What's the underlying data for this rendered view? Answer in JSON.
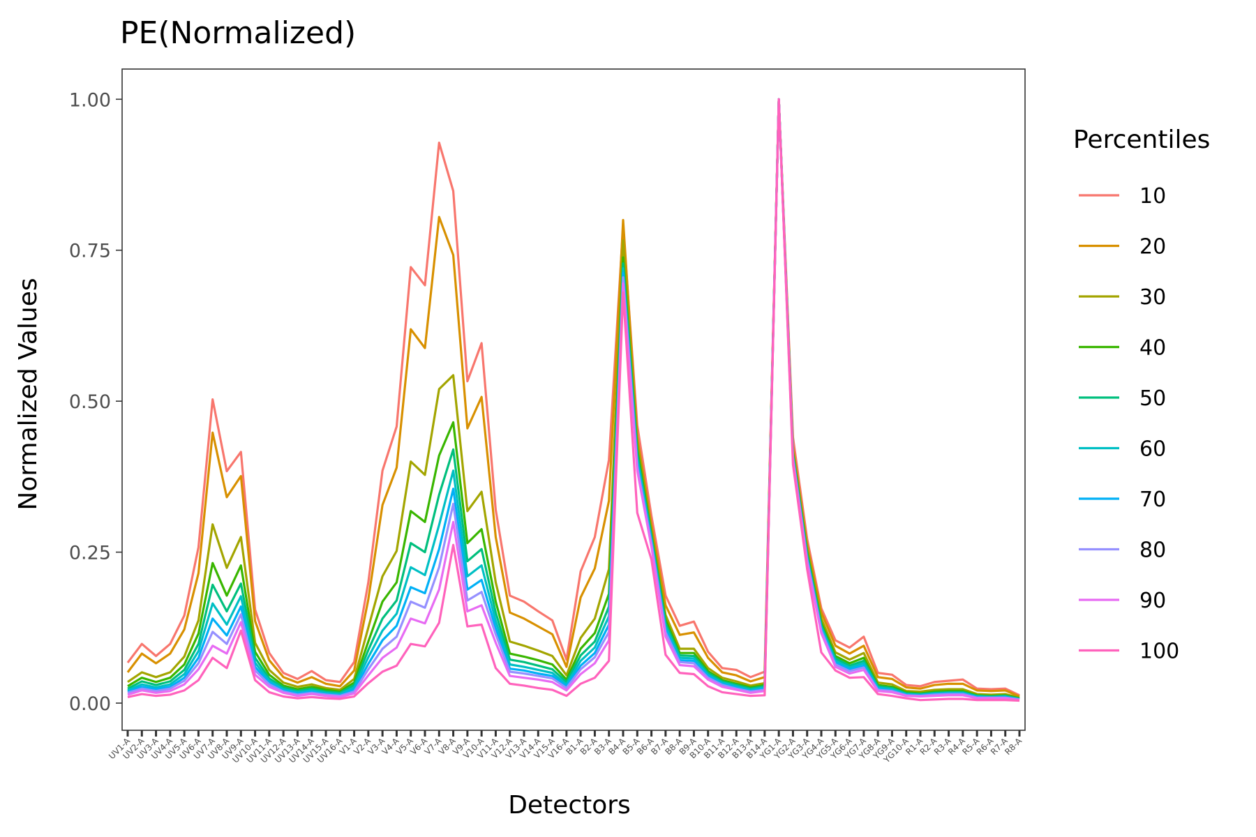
{
  "chart_data": {
    "type": "line",
    "title": "PE(Normalized)",
    "xlabel": "Detectors",
    "ylabel": "Normalized Values",
    "ylim": [
      -0.045,
      1.05
    ],
    "yticks": [
      0.0,
      0.25,
      0.5,
      0.75,
      1.0
    ],
    "ytick_labels": [
      "0.00",
      "0.25",
      "0.50",
      "0.75",
      "1.00"
    ],
    "grid": false,
    "legend": {
      "title": "Percentiles",
      "position": "right"
    },
    "categories": [
      "UV1-A",
      "UV2-A",
      "UV3-A",
      "UV4-A",
      "UV5-A",
      "UV6-A",
      "UV7-A",
      "UV8-A",
      "UV9-A",
      "UV10-A",
      "UV11-A",
      "UV12-A",
      "UV13-A",
      "UV14-A",
      "UV15-A",
      "UV16-A",
      "V1-A",
      "V2-A",
      "V3-A",
      "V4-A",
      "V5-A",
      "V6-A",
      "V7-A",
      "V8-A",
      "V9-A",
      "V10-A",
      "V11-A",
      "V12-A",
      "V13-A",
      "V14-A",
      "V15-A",
      "V16-A",
      "B1-A",
      "B2-A",
      "B3-A",
      "B4-A",
      "B5-A",
      "B6-A",
      "B7-A",
      "B8-A",
      "B9-A",
      "B10-A",
      "B11-A",
      "B12-A",
      "B13-A",
      "B14-A",
      "YG1-A",
      "YG2-A",
      "YG3-A",
      "YG4-A",
      "YG5-A",
      "YG6-A",
      "YG7-A",
      "YG8-A",
      "YG9-A",
      "YG10-A",
      "R1-A",
      "R2-A",
      "R3-A",
      "R4-A",
      "R5-A",
      "R6-A",
      "R7-A",
      "R8-A"
    ],
    "series": [
      {
        "name": "10",
        "color": "#F8766D",
        "values": [
          0.067,
          0.098,
          0.078,
          0.098,
          0.145,
          0.258,
          0.503,
          0.384,
          0.416,
          0.155,
          0.083,
          0.05,
          0.04,
          0.053,
          0.038,
          0.035,
          0.068,
          0.2,
          0.385,
          0.458,
          0.722,
          0.692,
          0.928,
          0.848,
          0.533,
          0.596,
          0.32,
          0.178,
          0.168,
          0.152,
          0.137,
          0.072,
          0.218,
          0.275,
          0.403,
          0.79,
          0.46,
          0.31,
          0.178,
          0.128,
          0.135,
          0.085,
          0.058,
          0.055,
          0.043,
          0.052,
          1.0,
          0.44,
          0.272,
          0.157,
          0.104,
          0.092,
          0.11,
          0.05,
          0.047,
          0.03,
          0.028,
          0.035,
          0.037,
          0.039,
          0.024,
          0.023,
          0.024,
          0.013
        ]
      },
      {
        "name": "20",
        "color": "#D89000",
        "values": [
          0.051,
          0.082,
          0.066,
          0.082,
          0.122,
          0.215,
          0.448,
          0.341,
          0.376,
          0.136,
          0.071,
          0.043,
          0.034,
          0.043,
          0.032,
          0.028,
          0.054,
          0.172,
          0.328,
          0.39,
          0.619,
          0.588,
          0.805,
          0.742,
          0.455,
          0.507,
          0.275,
          0.15,
          0.14,
          0.127,
          0.114,
          0.06,
          0.175,
          0.223,
          0.335,
          0.8,
          0.44,
          0.295,
          0.162,
          0.113,
          0.117,
          0.075,
          0.051,
          0.046,
          0.036,
          0.043,
          1.0,
          0.425,
          0.262,
          0.15,
          0.095,
          0.082,
          0.095,
          0.043,
          0.04,
          0.026,
          0.024,
          0.03,
          0.032,
          0.032,
          0.021,
          0.02,
          0.021,
          0.011
        ]
      },
      {
        "name": "30",
        "color": "#A3A500",
        "values": [
          0.035,
          0.051,
          0.043,
          0.051,
          0.077,
          0.137,
          0.296,
          0.224,
          0.275,
          0.1,
          0.055,
          0.034,
          0.027,
          0.031,
          0.025,
          0.022,
          0.04,
          0.125,
          0.21,
          0.252,
          0.4,
          0.378,
          0.52,
          0.543,
          0.318,
          0.35,
          0.2,
          0.102,
          0.095,
          0.087,
          0.078,
          0.046,
          0.108,
          0.14,
          0.222,
          0.766,
          0.43,
          0.285,
          0.146,
          0.09,
          0.09,
          0.058,
          0.042,
          0.036,
          0.029,
          0.033,
          1.0,
          0.42,
          0.255,
          0.14,
          0.084,
          0.072,
          0.083,
          0.034,
          0.031,
          0.02,
          0.019,
          0.022,
          0.023,
          0.023,
          0.015,
          0.014,
          0.015,
          0.009
        ]
      },
      {
        "name": "40",
        "color": "#39B600",
        "values": [
          0.028,
          0.042,
          0.035,
          0.042,
          0.064,
          0.115,
          0.232,
          0.178,
          0.228,
          0.085,
          0.047,
          0.029,
          0.023,
          0.027,
          0.022,
          0.019,
          0.034,
          0.102,
          0.168,
          0.2,
          0.318,
          0.3,
          0.41,
          0.465,
          0.265,
          0.288,
          0.168,
          0.082,
          0.077,
          0.071,
          0.064,
          0.039,
          0.09,
          0.116,
          0.181,
          0.738,
          0.42,
          0.28,
          0.138,
          0.083,
          0.083,
          0.053,
          0.038,
          0.032,
          0.026,
          0.03,
          1.0,
          0.415,
          0.25,
          0.133,
          0.078,
          0.066,
          0.075,
          0.03,
          0.027,
          0.018,
          0.016,
          0.019,
          0.02,
          0.02,
          0.013,
          0.012,
          0.013,
          0.008
        ]
      },
      {
        "name": "50",
        "color": "#00BF7D",
        "values": [
          0.024,
          0.036,
          0.03,
          0.036,
          0.055,
          0.098,
          0.196,
          0.152,
          0.198,
          0.075,
          0.041,
          0.026,
          0.02,
          0.024,
          0.019,
          0.017,
          0.03,
          0.088,
          0.14,
          0.17,
          0.265,
          0.25,
          0.345,
          0.42,
          0.235,
          0.255,
          0.15,
          0.072,
          0.068,
          0.062,
          0.056,
          0.035,
          0.079,
          0.102,
          0.16,
          0.728,
          0.412,
          0.276,
          0.132,
          0.079,
          0.078,
          0.05,
          0.036,
          0.03,
          0.024,
          0.028,
          1.0,
          0.412,
          0.246,
          0.129,
          0.074,
          0.062,
          0.07,
          0.028,
          0.025,
          0.016,
          0.015,
          0.017,
          0.018,
          0.018,
          0.012,
          0.011,
          0.012,
          0.007
        ]
      },
      {
        "name": "60",
        "color": "#00BFC4",
        "values": [
          0.021,
          0.031,
          0.026,
          0.031,
          0.048,
          0.086,
          0.165,
          0.13,
          0.177,
          0.067,
          0.037,
          0.023,
          0.018,
          0.021,
          0.017,
          0.015,
          0.026,
          0.076,
          0.12,
          0.148,
          0.225,
          0.212,
          0.295,
          0.385,
          0.21,
          0.228,
          0.136,
          0.064,
          0.06,
          0.055,
          0.05,
          0.031,
          0.07,
          0.092,
          0.144,
          0.72,
          0.405,
          0.272,
          0.127,
          0.075,
          0.074,
          0.047,
          0.034,
          0.028,
          0.022,
          0.026,
          1.0,
          0.41,
          0.243,
          0.126,
          0.07,
          0.059,
          0.066,
          0.026,
          0.023,
          0.015,
          0.014,
          0.016,
          0.017,
          0.017,
          0.011,
          0.01,
          0.011,
          0.007
        ]
      },
      {
        "name": "70",
        "color": "#00B0F6",
        "values": [
          0.019,
          0.027,
          0.023,
          0.027,
          0.042,
          0.075,
          0.14,
          0.112,
          0.16,
          0.06,
          0.034,
          0.021,
          0.016,
          0.019,
          0.015,
          0.013,
          0.022,
          0.065,
          0.104,
          0.128,
          0.192,
          0.182,
          0.255,
          0.355,
          0.188,
          0.204,
          0.124,
          0.057,
          0.054,
          0.049,
          0.045,
          0.028,
          0.062,
          0.083,
          0.13,
          0.712,
          0.398,
          0.268,
          0.122,
          0.071,
          0.07,
          0.045,
          0.032,
          0.026,
          0.02,
          0.024,
          1.0,
          0.408,
          0.24,
          0.123,
          0.067,
          0.056,
          0.062,
          0.024,
          0.021,
          0.014,
          0.013,
          0.015,
          0.016,
          0.016,
          0.01,
          0.009,
          0.01,
          0.006
        ]
      },
      {
        "name": "80",
        "color": "#9590FF",
        "values": [
          0.017,
          0.024,
          0.02,
          0.024,
          0.037,
          0.066,
          0.118,
          0.098,
          0.147,
          0.054,
          0.031,
          0.019,
          0.014,
          0.017,
          0.014,
          0.012,
          0.019,
          0.056,
          0.09,
          0.11,
          0.168,
          0.158,
          0.225,
          0.33,
          0.17,
          0.184,
          0.114,
          0.052,
          0.049,
          0.045,
          0.041,
          0.025,
          0.056,
          0.076,
          0.118,
          0.705,
          0.392,
          0.264,
          0.117,
          0.068,
          0.066,
          0.042,
          0.03,
          0.024,
          0.019,
          0.022,
          1.0,
          0.406,
          0.237,
          0.12,
          0.064,
          0.053,
          0.059,
          0.022,
          0.02,
          0.013,
          0.012,
          0.014,
          0.015,
          0.015,
          0.009,
          0.009,
          0.009,
          0.006
        ]
      },
      {
        "name": "90",
        "color": "#E76BF3",
        "values": [
          0.014,
          0.021,
          0.017,
          0.02,
          0.031,
          0.056,
          0.095,
          0.082,
          0.134,
          0.047,
          0.027,
          0.017,
          0.012,
          0.015,
          0.012,
          0.01,
          0.016,
          0.046,
          0.075,
          0.092,
          0.14,
          0.132,
          0.188,
          0.3,
          0.152,
          0.162,
          0.1,
          0.045,
          0.042,
          0.039,
          0.035,
          0.021,
          0.048,
          0.066,
          0.104,
          0.695,
          0.385,
          0.259,
          0.11,
          0.063,
          0.061,
          0.039,
          0.027,
          0.022,
          0.017,
          0.02,
          1.0,
          0.403,
          0.233,
          0.116,
          0.06,
          0.049,
          0.055,
          0.02,
          0.018,
          0.012,
          0.011,
          0.012,
          0.013,
          0.013,
          0.008,
          0.008,
          0.008,
          0.005
        ]
      },
      {
        "name": "100",
        "color": "#FF62BC",
        "values": [
          0.01,
          0.015,
          0.012,
          0.014,
          0.021,
          0.038,
          0.075,
          0.058,
          0.12,
          0.038,
          0.018,
          0.011,
          0.008,
          0.01,
          0.008,
          0.007,
          0.011,
          0.033,
          0.052,
          0.062,
          0.098,
          0.094,
          0.133,
          0.262,
          0.127,
          0.13,
          0.058,
          0.032,
          0.029,
          0.025,
          0.022,
          0.012,
          0.032,
          0.042,
          0.07,
          0.68,
          0.315,
          0.238,
          0.08,
          0.05,
          0.048,
          0.028,
          0.018,
          0.015,
          0.012,
          0.013,
          1.0,
          0.395,
          0.222,
          0.084,
          0.054,
          0.042,
          0.043,
          0.015,
          0.012,
          0.008,
          0.005,
          0.006,
          0.007,
          0.007,
          0.005,
          0.005,
          0.005,
          0.004
        ]
      }
    ]
  }
}
